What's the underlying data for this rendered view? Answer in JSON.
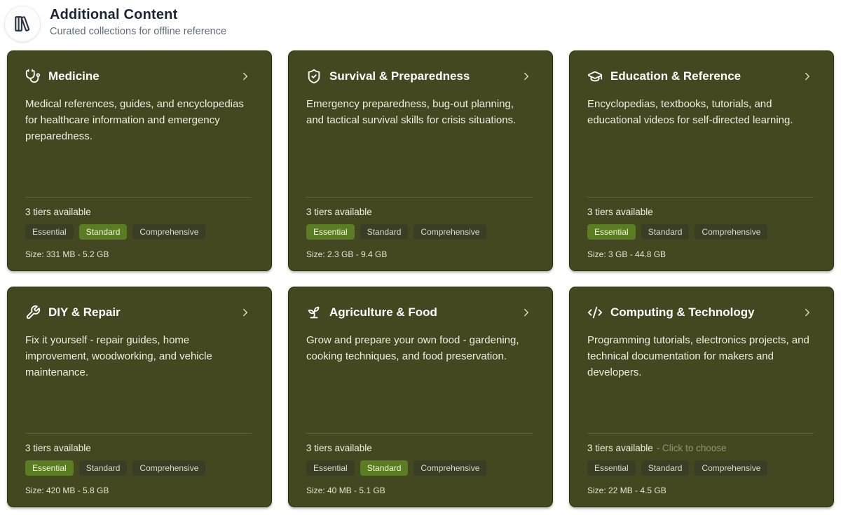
{
  "header": {
    "icon": "library-icon",
    "title": "Additional Content",
    "subtitle": "Curated collections for offline reference"
  },
  "colors": {
    "page_background": "#ffffff",
    "card_background": "#434820",
    "selected_tier_background": "#5a7d23",
    "tier_badge_background": "#3a3e25",
    "card_text": "#f0f1e4",
    "header_title_text": "#1a2433",
    "header_subtitle_text": "#606b79",
    "hint_text": "#8e957a"
  },
  "cards": [
    {
      "icon": "stethoscope-icon",
      "title": "Medicine",
      "description": "Medical references, guides, and encyclopedias for healthcare information and emergency preparedness.",
      "tiers_label": "3 tiers available",
      "tier_hint": "",
      "tiers": [
        "Essential",
        "Standard",
        "Comprehensive"
      ],
      "selected_tier": "Standard",
      "size": "Size: 331 MB - 5.2 GB"
    },
    {
      "icon": "shield-check-icon",
      "title": "Survival & Preparedness",
      "description": "Emergency preparedness, bug-out planning, and tactical survival skills for crisis situations.",
      "tiers_label": "3 tiers available",
      "tier_hint": "",
      "tiers": [
        "Essential",
        "Standard",
        "Comprehensive"
      ],
      "selected_tier": "Essential",
      "size": "Size: 2.3 GB - 9.4 GB"
    },
    {
      "icon": "graduation-cap-icon",
      "title": "Education & Reference",
      "description": "Encyclopedias, textbooks, tutorials, and educational videos for self-directed learning.",
      "tiers_label": "3 tiers available",
      "tier_hint": "",
      "tiers": [
        "Essential",
        "Standard",
        "Comprehensive"
      ],
      "selected_tier": "Essential",
      "size": "Size: 3 GB - 44.8 GB"
    },
    {
      "icon": "wrench-icon",
      "title": "DIY & Repair",
      "description": "Fix it yourself - repair guides, home improvement, woodworking, and vehicle maintenance.",
      "tiers_label": "3 tiers available",
      "tier_hint": "",
      "tiers": [
        "Essential",
        "Standard",
        "Comprehensive"
      ],
      "selected_tier": "Essential",
      "size": "Size: 420 MB - 5.8 GB"
    },
    {
      "icon": "sprout-icon",
      "title": "Agriculture & Food",
      "description": "Grow and prepare your own food - gardening, cooking techniques, and food preservation.",
      "tiers_label": "3 tiers available",
      "tier_hint": "",
      "tiers": [
        "Essential",
        "Standard",
        "Comprehensive"
      ],
      "selected_tier": "Standard",
      "size": "Size: 40 MB - 5.1 GB"
    },
    {
      "icon": "code-icon",
      "title": "Computing & Technology",
      "description": "Programming tutorials, electronics projects, and technical documentation for makers and developers.",
      "tiers_label": "3 tiers available",
      "tier_hint": "- Click to choose",
      "tiers": [
        "Essential",
        "Standard",
        "Comprehensive"
      ],
      "selected_tier": "",
      "size": "Size: 22 MB - 4.5 GB"
    }
  ]
}
